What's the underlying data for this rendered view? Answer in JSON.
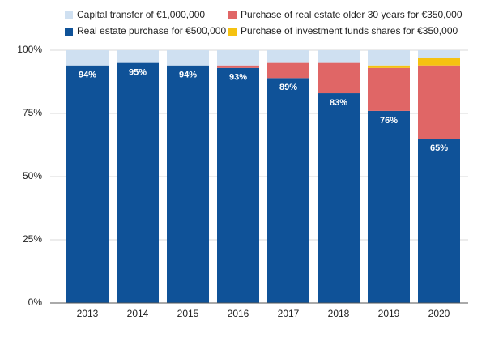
{
  "chart_data": {
    "type": "stacked_bar",
    "categories": [
      "2013",
      "2014",
      "2015",
      "2016",
      "2017",
      "2018",
      "2019",
      "2020"
    ],
    "series": [
      {
        "name": "Real estate purchase for €500,000",
        "color": "#0f5298",
        "values": [
          94,
          95,
          94,
          93,
          89,
          83,
          76,
          65
        ],
        "value_labels": [
          "94%",
          "95%",
          "94%",
          "93%",
          "89%",
          "83%",
          "76%",
          "65%"
        ]
      },
      {
        "name": "Purchase of real estate older 30 years for €350,000",
        "color": "#e06666",
        "values": [
          0,
          0,
          0,
          1,
          6,
          12,
          17,
          29
        ]
      },
      {
        "name": "Purchase of investment funds shares for €350,000",
        "color": "#f5c211",
        "values": [
          0,
          0,
          0,
          0,
          0,
          0,
          1,
          3
        ]
      },
      {
        "name": "Capital transfer of €1,000,000",
        "color": "#cfe0f1",
        "values": [
          6,
          5,
          6,
          6,
          5,
          5,
          6,
          3
        ]
      }
    ],
    "ylim": [
      0,
      100
    ],
    "yticks": [
      {
        "value": 0,
        "label": "0%"
      },
      {
        "value": 25,
        "label": "25%"
      },
      {
        "value": 50,
        "label": "50%"
      },
      {
        "value": 75,
        "label": "75%"
      },
      {
        "value": 100,
        "label": "100%"
      }
    ],
    "grid": true
  }
}
